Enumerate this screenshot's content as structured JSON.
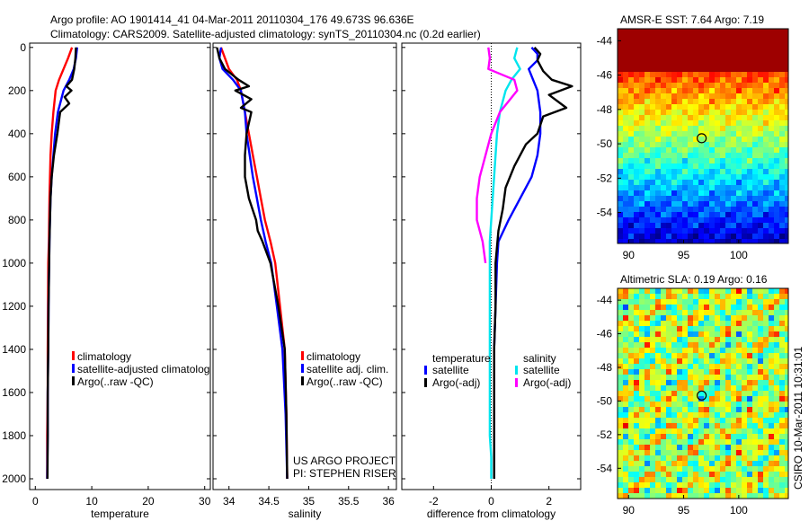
{
  "header": {
    "title_line1": "Argo profile: AO 1901414_41 04-Mar-2011 20110304_176 49.673S 96.636E",
    "title_line2": "Climatology: CARS2009. Satellite-adjusted climatology: synTS_20110304.nc (0.2d earlier)"
  },
  "stamp": "CSIRO 10-Mar-2011 10:31:01",
  "colors": {
    "climatology": "#ff0000",
    "satellite": "#0000ff",
    "argo": "#000000",
    "cyan": "#00e5ee",
    "magenta": "#ff00ff"
  },
  "chart_data": [
    {
      "type": "line",
      "id": "temperature",
      "xlabel": "temperature",
      "ylabel": "",
      "xlim": [
        -1,
        31
      ],
      "ylim": [
        2050,
        -20
      ],
      "yreversed": true,
      "xticks": [
        "0",
        "10",
        "20",
        "30"
      ],
      "yticks": [
        "0",
        "200",
        "400",
        "600",
        "800",
        "1000",
        "1200",
        "1400",
        "1600",
        "1800",
        "2000"
      ],
      "legend": [
        "climatology",
        "satellite-adjusted climatolog",
        "Argo(..raw -QC)"
      ],
      "series": [
        {
          "name": "climatology",
          "color": "climatology",
          "x": [
            6.5,
            5.8,
            5.0,
            4.2,
            3.6,
            3.2,
            2.9,
            2.7,
            2.6,
            2.5,
            2.45,
            2.4,
            2.3,
            2.25,
            2.2,
            2.2,
            2.2,
            2.15,
            2.1,
            2.1,
            2.1
          ],
          "y": [
            0,
            50,
            100,
            150,
            200,
            300,
            400,
            500,
            600,
            700,
            800,
            900,
            1000,
            1200,
            1400,
            1500,
            1600,
            1700,
            1800,
            1900,
            2000
          ]
        },
        {
          "name": "satellite-adjusted climatolog",
          "color": "satellite",
          "x": [
            7.4,
            7.2,
            6.8,
            6.0,
            5.0,
            4.0,
            3.5,
            3.2,
            2.9,
            2.7,
            2.6,
            2.5,
            2.45,
            2.35,
            2.3,
            2.25,
            2.2,
            2.2,
            2.2,
            2.15,
            2.1
          ],
          "y": [
            0,
            50,
            100,
            150,
            200,
            300,
            400,
            500,
            600,
            700,
            800,
            900,
            1000,
            1200,
            1400,
            1500,
            1600,
            1700,
            1800,
            1900,
            2000
          ]
        },
        {
          "name": "Argo(..raw -QC)",
          "color": "argo",
          "x": [
            7.2,
            7.1,
            6.9,
            6.5,
            5.5,
            6.4,
            5.2,
            6.0,
            4.4,
            3.9,
            3.3,
            2.9,
            2.7,
            2.6,
            2.5,
            2.45,
            2.35,
            2.3,
            2.2,
            2.2,
            2.15
          ],
          "y": [
            0,
            50,
            100,
            150,
            180,
            200,
            230,
            260,
            300,
            400,
            500,
            600,
            700,
            800,
            900,
            1000,
            1200,
            1400,
            1600,
            1800,
            2000
          ]
        }
      ]
    },
    {
      "type": "line",
      "id": "salinity",
      "xlabel": "salinity",
      "ylabel": "",
      "xlim": [
        33.8,
        36.1
      ],
      "ylim": [
        2050,
        -20
      ],
      "yreversed": true,
      "xticks": [
        "34",
        "34.5",
        "35",
        "35.5",
        "36"
      ],
      "legend": [
        "climatology",
        "satellite adj. clim.",
        "Argo(..raw -QC)"
      ],
      "annotations": [
        "US ARGO PROJECT",
        "PI: STEPHEN RISER"
      ],
      "series": [
        {
          "name": "climatology",
          "color": "climatology",
          "x": [
            33.9,
            33.95,
            34.0,
            34.1,
            34.15,
            34.2,
            34.25,
            34.3,
            34.35,
            34.4,
            34.45,
            34.52,
            34.58,
            34.64,
            34.7,
            34.72,
            34.73
          ],
          "y": [
            0,
            50,
            100,
            150,
            200,
            300,
            400,
            500,
            600,
            700,
            800,
            900,
            1000,
            1200,
            1400,
            1700,
            2000
          ]
        },
        {
          "name": "satellite adj. clim.",
          "color": "satellite",
          "x": [
            33.9,
            33.88,
            33.92,
            34.05,
            34.15,
            34.2,
            34.22,
            34.26,
            34.3,
            34.35,
            34.4,
            34.46,
            34.53,
            34.6,
            34.67,
            34.71,
            34.73
          ],
          "y": [
            0,
            50,
            100,
            150,
            200,
            300,
            400,
            500,
            600,
            700,
            800,
            900,
            1000,
            1200,
            1400,
            1700,
            2000
          ]
        },
        {
          "name": "Argo(..raw -QC)",
          "color": "argo",
          "x": [
            33.85,
            33.88,
            33.95,
            34.12,
            34.25,
            34.08,
            34.28,
            34.15,
            34.28,
            34.22,
            34.2,
            34.2,
            34.25,
            34.34,
            34.36,
            34.42,
            34.52,
            34.62,
            34.7,
            34.72,
            34.73
          ],
          "y": [
            0,
            50,
            100,
            150,
            180,
            200,
            240,
            280,
            300,
            400,
            500,
            600,
            700,
            800,
            850,
            900,
            1000,
            1200,
            1400,
            1700,
            2000
          ]
        }
      ]
    },
    {
      "type": "line",
      "id": "difference",
      "xlabel": "difference from climatology",
      "ylabel": "",
      "xlim": [
        -3.1,
        3.1
      ],
      "ylim": [
        2050,
        -20
      ],
      "yreversed": true,
      "xticks": [
        "-2",
        "0",
        "2"
      ],
      "legend_titles": [
        "temperature",
        "salinity"
      ],
      "legend": [
        "satellite",
        "Argo(-adj)",
        "satellite",
        "Argo(-adj)"
      ],
      "series": [
        {
          "name": "temperature satellite",
          "color": "satellite",
          "x": [
            1.4,
            1.6,
            1.6,
            1.3,
            1.6,
            1.7,
            1.7,
            1.6,
            1.4,
            1.0,
            0.6,
            0.25,
            0.2,
            0.15,
            0.1,
            0.1,
            0.1,
            0.1,
            0.1
          ],
          "y": [
            0,
            30,
            60,
            100,
            200,
            300,
            400,
            500,
            600,
            700,
            800,
            900,
            1000,
            1200,
            1400,
            1600,
            1800,
            1900,
            2000
          ]
        },
        {
          "name": "temperature Argo(-adj)",
          "color": "argo",
          "x": [
            1.5,
            1.7,
            1.6,
            1.8,
            2.1,
            2.8,
            2.0,
            2.6,
            1.8,
            1.6,
            1.2,
            0.8,
            0.5,
            0.4,
            0.25,
            0.15,
            0.15,
            0.1,
            0.1,
            0.1,
            0.1
          ],
          "y": [
            0,
            30,
            60,
            110,
            150,
            180,
            220,
            280,
            320,
            400,
            450,
            550,
            650,
            750,
            850,
            1000,
            1200,
            1400,
            1600,
            1800,
            2000
          ]
        },
        {
          "name": "salinity satellite",
          "color": "cyan",
          "x": [
            0.9,
            0.8,
            1.0,
            0.7,
            0.5,
            0.3,
            0.2,
            0.15,
            0.1,
            0.05,
            0.0,
            -0.05,
            -0.05,
            -0.05,
            -0.05,
            -0.05,
            -0.05,
            -0.05,
            0.0,
            0.0
          ],
          "y": [
            0,
            50,
            100,
            150,
            200,
            300,
            400,
            500,
            600,
            700,
            800,
            900,
            1000,
            1200,
            1400,
            1500,
            1600,
            1800,
            1900,
            2000
          ]
        },
        {
          "name": "salinity Argo(-adj)",
          "color": "magenta",
          "x": [
            -0.1,
            -0.05,
            -0.1,
            0.8,
            0.9,
            0.6,
            0.3,
            0.0,
            -0.2,
            -0.4,
            -0.5,
            -0.5,
            -0.4,
            -0.3,
            -0.25,
            -0.2
          ],
          "y": [
            0,
            50,
            100,
            150,
            200,
            250,
            300,
            400,
            500,
            600,
            700,
            800,
            850,
            900,
            950,
            1000
          ]
        }
      ]
    },
    {
      "type": "heatmap",
      "id": "sst",
      "title": "AMSR-E SST: 7.64 Argo: 7.19",
      "xlim": [
        89,
        104.5
      ],
      "ylim": [
        -55.8,
        -43.3
      ],
      "xticks": [
        "90",
        "95",
        "100"
      ],
      "yticks": [
        "-44",
        "-46",
        "-48",
        "-50",
        "-52",
        "-54"
      ],
      "marker": {
        "x": 96.636,
        "y": -49.673
      }
    },
    {
      "type": "heatmap",
      "id": "sla",
      "title": "Altimetric SLA: 0.19 Argo: 0.16",
      "xlim": [
        89,
        104.5
      ],
      "ylim": [
        -55.8,
        -43.3
      ],
      "xticks": [
        "90",
        "95",
        "100"
      ],
      "yticks": [
        "-44",
        "-46",
        "-48",
        "-50",
        "-52",
        "-54"
      ],
      "marker": {
        "x": 96.636,
        "y": -49.673
      }
    }
  ]
}
